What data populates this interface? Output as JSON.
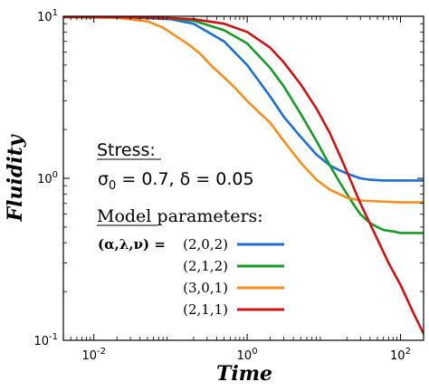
{
  "chart_data": {
    "type": "line",
    "xscale": "log",
    "yscale": "log",
    "xlim": [
      0.004,
      200
    ],
    "ylim": [
      0.1,
      10
    ],
    "xlabel": "Time",
    "ylabel": "Fluidity",
    "x_ticks": [
      {
        "value": 0.01,
        "base": "10",
        "exp": "-2"
      },
      {
        "value": 1,
        "base": "10",
        "exp": "0"
      },
      {
        "value": 100,
        "base": "10",
        "exp": "2"
      }
    ],
    "y_ticks": [
      {
        "value": 0.1,
        "base": "10",
        "exp": "-1"
      },
      {
        "value": 1,
        "base": "10",
        "exp": "0"
      },
      {
        "value": 10,
        "base": "10",
        "exp": "1"
      }
    ],
    "annotation": {
      "stress_heading": "Stress:",
      "stress_symbol": "σ",
      "stress_subscript": "0",
      "stress_values": " = 0.7, δ = 0.05",
      "model_heading": "Model parameters:"
    },
    "legend": {
      "prefix": "(α,λ,ν) =",
      "placement": "center-left"
    },
    "series": [
      {
        "name": "(2,0,2)",
        "color": "#1f6fd1",
        "x": [
          0.004,
          0.03,
          0.1,
          0.2,
          0.5,
          1,
          2,
          3,
          5,
          8,
          12,
          16,
          20,
          25,
          30,
          40,
          60,
          100,
          200
        ],
        "y": [
          9.9,
          9.85,
          9.6,
          9.0,
          7.0,
          5.0,
          3.2,
          2.4,
          1.8,
          1.4,
          1.2,
          1.12,
          1.07,
          1.03,
          1.0,
          0.98,
          0.97,
          0.97,
          0.97
        ]
      },
      {
        "name": "(2,1,2)",
        "color": "#1a9a28",
        "x": [
          0.004,
          0.03,
          0.1,
          0.2,
          0.5,
          1,
          2,
          3,
          5,
          8,
          12,
          16,
          20,
          25,
          30,
          40,
          50,
          60,
          80,
          100,
          200
        ],
        "y": [
          9.9,
          9.85,
          9.7,
          9.4,
          8.2,
          6.8,
          4.8,
          3.7,
          2.5,
          1.7,
          1.2,
          0.95,
          0.8,
          0.68,
          0.6,
          0.53,
          0.5,
          0.48,
          0.47,
          0.46,
          0.46
        ]
      },
      {
        "name": "(3,0,1)",
        "color": "#f5901e",
        "x": [
          0.004,
          0.02,
          0.05,
          0.08,
          0.12,
          0.18,
          0.25,
          0.35,
          0.5,
          0.7,
          1,
          1.5,
          2,
          3,
          5,
          8,
          12,
          20,
          30,
          50,
          100,
          200
        ],
        "y": [
          9.9,
          9.8,
          9.3,
          8.5,
          7.5,
          6.6,
          5.8,
          4.9,
          4.2,
          3.6,
          3.0,
          2.5,
          2.2,
          1.7,
          1.25,
          0.98,
          0.85,
          0.76,
          0.73,
          0.72,
          0.71,
          0.71
        ]
      },
      {
        "name": "(2,1,1)",
        "color": "#cc1414",
        "x": [
          0.004,
          0.03,
          0.1,
          0.2,
          0.5,
          1,
          2,
          3,
          5,
          8,
          12,
          16,
          20,
          30,
          50,
          70,
          100,
          150,
          200
        ],
        "y": [
          9.9,
          9.85,
          9.75,
          9.6,
          9.0,
          8.0,
          6.4,
          5.2,
          3.8,
          2.7,
          1.9,
          1.4,
          1.1,
          0.7,
          0.42,
          0.3,
          0.22,
          0.145,
          0.11
        ]
      }
    ]
  }
}
